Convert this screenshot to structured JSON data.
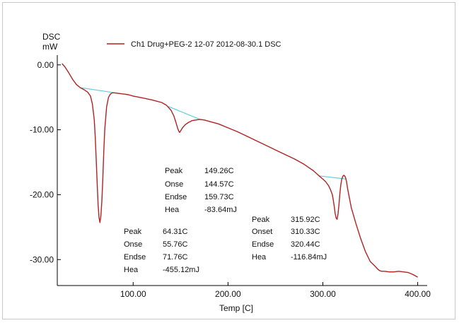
{
  "chart_data": {
    "type": "line",
    "title": "",
    "ylabel_line1": "DSC",
    "ylabel_line2": "mW",
    "xlabel": "Temp [C]",
    "xlim": [
      20,
      410
    ],
    "ylim": [
      -34,
      1.5
    ],
    "x_ticks": [
      100,
      200,
      300,
      400
    ],
    "x_tick_labels": [
      "100.00",
      "200.00",
      "300.00",
      "400.00"
    ],
    "y_ticks": [
      0,
      -10,
      -20,
      -30
    ],
    "y_tick_labels": [
      "0.00",
      "-10.00",
      "-20.00",
      "-30.00"
    ],
    "grid": false,
    "legend": {
      "placement": "top",
      "entries": [
        {
          "name": "Ch1 Drug+PEG-2 12-07 2012-08-30.1 DSC",
          "color": "#b22222"
        }
      ]
    },
    "series": [
      {
        "name": "Ch1 Drug+PEG-2 12-07 2012-08-30.1 DSC",
        "color": "#b22222",
        "x": [
          25,
          28,
          32,
          36,
          40,
          44,
          48,
          52,
          55,
          57,
          59,
          60,
          61,
          62,
          63,
          64,
          65,
          66,
          67,
          68,
          69,
          70,
          72,
          74,
          76,
          78,
          80,
          85,
          90,
          95,
          100,
          110,
          120,
          130,
          135,
          140,
          143,
          145,
          147,
          148,
          149,
          150,
          152,
          155,
          158,
          162,
          166,
          170,
          175,
          180,
          190,
          200,
          210,
          220,
          230,
          240,
          250,
          260,
          270,
          280,
          285,
          290,
          293,
          296,
          300,
          303,
          306,
          308,
          310,
          311,
          312,
          313,
          314,
          315,
          316,
          317,
          318,
          319,
          320,
          321,
          322,
          323,
          324,
          325,
          326,
          328,
          330,
          335,
          340,
          345,
          350,
          355,
          358,
          360,
          362,
          365,
          370,
          375,
          380,
          385,
          390,
          395,
          400
        ],
        "y": [
          0.2,
          -0.3,
          -1.2,
          -2.2,
          -3.0,
          -3.5,
          -3.8,
          -4.2,
          -4.8,
          -6.0,
          -8.5,
          -11.0,
          -14.5,
          -18.0,
          -21.5,
          -23.5,
          -24.3,
          -23.2,
          -21.0,
          -17.5,
          -13.5,
          -10.0,
          -6.5,
          -5.0,
          -4.5,
          -4.3,
          -4.3,
          -4.4,
          -4.5,
          -4.6,
          -4.8,
          -5.1,
          -5.4,
          -5.8,
          -6.2,
          -7.0,
          -7.9,
          -8.8,
          -9.8,
          -10.2,
          -10.4,
          -10.2,
          -9.7,
          -9.2,
          -8.9,
          -8.6,
          -8.5,
          -8.4,
          -8.5,
          -8.7,
          -9.1,
          -9.7,
          -10.3,
          -11.0,
          -11.7,
          -12.4,
          -13.1,
          -13.8,
          -14.5,
          -15.3,
          -15.8,
          -16.3,
          -16.7,
          -17.1,
          -17.6,
          -18.0,
          -18.6,
          -19.2,
          -20.0,
          -20.8,
          -21.8,
          -22.9,
          -23.6,
          -23.8,
          -23.0,
          -21.5,
          -19.8,
          -18.4,
          -17.6,
          -17.2,
          -17.0,
          -17.1,
          -17.4,
          -18.0,
          -19.0,
          -20.5,
          -22.0,
          -24.5,
          -26.8,
          -28.8,
          -30.3,
          -31.0,
          -31.5,
          -31.7,
          -31.8,
          -31.8,
          -31.9,
          -31.9,
          -31.8,
          -31.9,
          -32.0,
          -32.3,
          -32.7
        ]
      }
    ],
    "baselines": [
      {
        "x": [
          44,
          85
        ],
        "y": [
          -3.5,
          -4.4
        ]
      },
      {
        "x": [
          137,
          172
        ],
        "y": [
          -6.4,
          -8.5
        ]
      },
      {
        "x": [
          296,
          325
        ],
        "y": [
          -17.1,
          -17.6
        ]
      }
    ],
    "annotations": [
      {
        "rows": [
          {
            "label": "Peak",
            "value": "149.26C"
          },
          {
            "label": "Onse",
            "value": "144.57C"
          },
          {
            "label": "Endse",
            "value": "159.73C"
          },
          {
            "label": "Hea",
            "value": "-83.64mJ"
          }
        ]
      },
      {
        "rows": [
          {
            "label": "Peak",
            "value": "64.31C"
          },
          {
            "label": "Onse",
            "value": "55.76C"
          },
          {
            "label": "Endse",
            "value": "71.76C"
          },
          {
            "label": "Hea",
            "value": "-455.12mJ"
          }
        ]
      },
      {
        "rows": [
          {
            "label": "Peak",
            "value": "315.92C"
          },
          {
            "label": "Onset",
            "value": "310.33C"
          },
          {
            "label": "Endse",
            "value": "320.44C"
          },
          {
            "label": "Hea",
            "value": "-116.84mJ"
          }
        ]
      }
    ],
    "baseline_color": "#5fd0dc",
    "axis_color": "#000000"
  }
}
